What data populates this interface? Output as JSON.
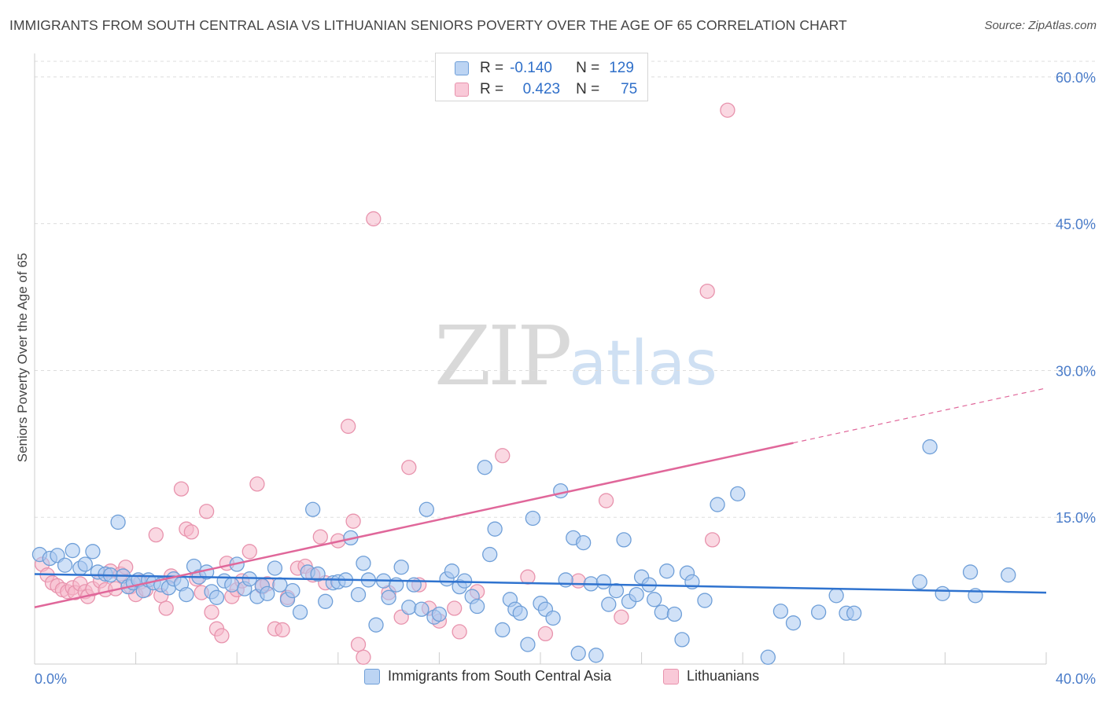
{
  "title": "IMMIGRANTS FROM SOUTH CENTRAL ASIA VS LITHUANIAN SENIORS POVERTY OVER THE AGE OF 65 CORRELATION CHART",
  "source": "Source: ZipAtlas.com",
  "watermark": {
    "zip": "ZIP",
    "atlas": "atlas"
  },
  "legend_top": [
    {
      "r_label": "R =",
      "r_value": "-0.140",
      "n_label": "N =",
      "n_value": "129"
    },
    {
      "r_label": "R =",
      "r_value": "0.423",
      "n_label": "N =",
      "n_value": "75"
    }
  ],
  "colors": {
    "blue_fill": "#a9c8f0",
    "blue_stroke": "#6f9fd8",
    "blue_line": "#2f73cf",
    "pink_fill": "#f5b8cb",
    "pink_stroke": "#e893ad",
    "pink_line": "#e0679a",
    "tick_label": "#4a7cc9",
    "grid": "#dddddd"
  },
  "chart_data": {
    "type": "scatter",
    "title": "IMMIGRANTS FROM SOUTH CENTRAL ASIA VS LITHUANIAN SENIORS POVERTY OVER THE AGE OF 65 CORRELATION CHART",
    "xlabel": "",
    "ylabel": "Seniors Poverty Over the Age of 65",
    "xlim": [
      0,
      40
    ],
    "ylim": [
      0,
      62
    ],
    "x_tick_labels": [
      "0.0%",
      "40.0%"
    ],
    "y_ticks": [
      15,
      30,
      45,
      60
    ],
    "y_tick_labels": [
      "15.0%",
      "30.0%",
      "45.0%",
      "60.0%"
    ],
    "series": [
      {
        "name": "Immigrants from South Central Asia",
        "color": "blue",
        "r": -0.14,
        "n": 129,
        "trend": {
          "x": [
            0,
            40
          ],
          "y": [
            9.2,
            7.3
          ],
          "dashed_from": null
        },
        "points": [
          [
            0.2,
            11.2
          ],
          [
            0.6,
            10.8
          ],
          [
            0.9,
            11.1
          ],
          [
            1.2,
            10.1
          ],
          [
            1.5,
            11.6
          ],
          [
            1.8,
            9.8
          ],
          [
            2.0,
            10.2
          ],
          [
            2.3,
            11.5
          ],
          [
            2.5,
            9.4
          ],
          [
            2.8,
            9.2
          ],
          [
            3.0,
            9.1
          ],
          [
            3.3,
            14.5
          ],
          [
            3.5,
            9.0
          ],
          [
            3.7,
            7.9
          ],
          [
            3.9,
            8.3
          ],
          [
            4.1,
            8.6
          ],
          [
            4.3,
            7.5
          ],
          [
            4.5,
            8.6
          ],
          [
            4.7,
            8.3
          ],
          [
            5.0,
            8.1
          ],
          [
            5.3,
            7.8
          ],
          [
            5.5,
            8.7
          ],
          [
            5.8,
            8.2
          ],
          [
            6.0,
            7.1
          ],
          [
            6.3,
            10.0
          ],
          [
            6.5,
            8.9
          ],
          [
            6.8,
            9.4
          ],
          [
            7.0,
            7.4
          ],
          [
            7.2,
            6.8
          ],
          [
            7.5,
            8.5
          ],
          [
            7.8,
            8.1
          ],
          [
            8.0,
            10.2
          ],
          [
            8.3,
            7.7
          ],
          [
            8.5,
            8.7
          ],
          [
            8.8,
            6.9
          ],
          [
            9.0,
            8.0
          ],
          [
            9.2,
            7.2
          ],
          [
            9.5,
            9.8
          ],
          [
            9.7,
            8.1
          ],
          [
            10.0,
            6.6
          ],
          [
            10.2,
            7.5
          ],
          [
            10.5,
            5.3
          ],
          [
            10.8,
            9.4
          ],
          [
            11.0,
            15.8
          ],
          [
            11.2,
            9.2
          ],
          [
            11.5,
            6.4
          ],
          [
            11.8,
            8.3
          ],
          [
            12.0,
            8.4
          ],
          [
            12.3,
            8.6
          ],
          [
            12.5,
            12.9
          ],
          [
            12.8,
            7.1
          ],
          [
            13.0,
            10.3
          ],
          [
            13.2,
            8.6
          ],
          [
            13.5,
            4.0
          ],
          [
            13.8,
            8.5
          ],
          [
            14.0,
            6.8
          ],
          [
            14.3,
            8.1
          ],
          [
            14.5,
            9.9
          ],
          [
            14.8,
            5.8
          ],
          [
            15.0,
            8.1
          ],
          [
            15.3,
            5.6
          ],
          [
            15.5,
            15.8
          ],
          [
            15.8,
            4.8
          ],
          [
            16.0,
            5.1
          ],
          [
            16.3,
            8.7
          ],
          [
            16.5,
            9.5
          ],
          [
            16.8,
            7.9
          ],
          [
            17.0,
            8.5
          ],
          [
            17.3,
            6.9
          ],
          [
            17.5,
            5.9
          ],
          [
            17.8,
            20.1
          ],
          [
            18.0,
            11.2
          ],
          [
            18.2,
            13.8
          ],
          [
            18.5,
            3.5
          ],
          [
            18.8,
            6.6
          ],
          [
            19.0,
            5.6
          ],
          [
            19.2,
            5.2
          ],
          [
            19.5,
            2.0
          ],
          [
            19.7,
            14.9
          ],
          [
            20.0,
            6.2
          ],
          [
            20.2,
            5.6
          ],
          [
            20.5,
            4.7
          ],
          [
            20.8,
            17.7
          ],
          [
            21.0,
            8.6
          ],
          [
            21.3,
            12.9
          ],
          [
            21.5,
            1.1
          ],
          [
            21.7,
            12.4
          ],
          [
            22.0,
            8.2
          ],
          [
            22.2,
            0.9
          ],
          [
            22.5,
            8.4
          ],
          [
            22.7,
            6.1
          ],
          [
            23.0,
            7.5
          ],
          [
            23.3,
            12.7
          ],
          [
            23.5,
            6.4
          ],
          [
            23.8,
            7.1
          ],
          [
            24.0,
            8.9
          ],
          [
            24.3,
            8.1
          ],
          [
            24.5,
            6.6
          ],
          [
            24.8,
            5.3
          ],
          [
            25.0,
            9.5
          ],
          [
            25.3,
            5.1
          ],
          [
            25.6,
            2.5
          ],
          [
            25.8,
            9.3
          ],
          [
            26.0,
            8.4
          ],
          [
            26.5,
            6.5
          ],
          [
            27.0,
            16.3
          ],
          [
            27.8,
            17.4
          ],
          [
            29.0,
            0.7
          ],
          [
            29.5,
            5.4
          ],
          [
            30.0,
            4.2
          ],
          [
            31.0,
            5.3
          ],
          [
            31.7,
            7.0
          ],
          [
            32.1,
            5.2
          ],
          [
            32.4,
            5.2
          ],
          [
            35.0,
            8.4
          ],
          [
            35.4,
            22.2
          ],
          [
            35.9,
            7.2
          ],
          [
            37.0,
            9.4
          ],
          [
            37.2,
            7.0
          ],
          [
            38.5,
            9.1
          ]
        ]
      },
      {
        "name": "Lithuanians",
        "color": "pink",
        "r": 0.423,
        "n": 75,
        "trend": {
          "x": [
            0,
            40
          ],
          "y": [
            5.8,
            28.2
          ],
          "dashed_from": 30
        },
        "points": [
          [
            0.3,
            10.2
          ],
          [
            0.5,
            9.1
          ],
          [
            0.7,
            8.3
          ],
          [
            0.9,
            8.0
          ],
          [
            1.1,
            7.6
          ],
          [
            1.3,
            7.4
          ],
          [
            1.5,
            7.8
          ],
          [
            1.6,
            7.3
          ],
          [
            1.8,
            8.2
          ],
          [
            2.0,
            7.4
          ],
          [
            2.1,
            6.9
          ],
          [
            2.3,
            7.7
          ],
          [
            2.6,
            8.5
          ],
          [
            2.8,
            7.6
          ],
          [
            3.0,
            9.5
          ],
          [
            3.2,
            7.7
          ],
          [
            3.4,
            9.2
          ],
          [
            3.6,
            9.9
          ],
          [
            3.8,
            7.9
          ],
          [
            4.0,
            7.1
          ],
          [
            4.2,
            8.4
          ],
          [
            4.4,
            7.6
          ],
          [
            4.8,
            13.2
          ],
          [
            5.0,
            7.0
          ],
          [
            5.2,
            5.7
          ],
          [
            5.4,
            9.0
          ],
          [
            5.8,
            17.9
          ],
          [
            6.0,
            13.8
          ],
          [
            6.2,
            13.5
          ],
          [
            6.4,
            8.7
          ],
          [
            6.6,
            7.3
          ],
          [
            6.8,
            15.6
          ],
          [
            7.0,
            5.3
          ],
          [
            7.2,
            3.6
          ],
          [
            7.4,
            2.9
          ],
          [
            7.6,
            10.3
          ],
          [
            7.8,
            6.9
          ],
          [
            8.0,
            7.6
          ],
          [
            8.2,
            8.5
          ],
          [
            8.5,
            11.5
          ],
          [
            8.8,
            18.4
          ],
          [
            9.0,
            7.9
          ],
          [
            9.2,
            8.2
          ],
          [
            9.5,
            3.6
          ],
          [
            9.8,
            3.5
          ],
          [
            10.0,
            6.8
          ],
          [
            10.4,
            9.8
          ],
          [
            10.7,
            10.0
          ],
          [
            11.0,
            9.1
          ],
          [
            11.3,
            13.0
          ],
          [
            11.5,
            8.3
          ],
          [
            12.0,
            12.6
          ],
          [
            12.4,
            24.3
          ],
          [
            12.6,
            14.6
          ],
          [
            12.8,
            2.0
          ],
          [
            13.0,
            0.7
          ],
          [
            13.4,
            45.5
          ],
          [
            14.0,
            7.3
          ],
          [
            14.5,
            4.8
          ],
          [
            14.8,
            20.1
          ],
          [
            15.2,
            8.1
          ],
          [
            15.6,
            5.7
          ],
          [
            16.0,
            4.4
          ],
          [
            16.6,
            5.7
          ],
          [
            16.8,
            3.3
          ],
          [
            17.5,
            7.4
          ],
          [
            18.5,
            21.3
          ],
          [
            19.5,
            8.9
          ],
          [
            20.2,
            3.1
          ],
          [
            21.5,
            8.5
          ],
          [
            22.6,
            16.7
          ],
          [
            23.2,
            4.8
          ],
          [
            26.6,
            38.1
          ],
          [
            26.8,
            12.7
          ],
          [
            27.4,
            56.6
          ]
        ]
      }
    ]
  },
  "legend_bottom": [
    "Immigrants from South Central Asia",
    "Lithuanians"
  ]
}
